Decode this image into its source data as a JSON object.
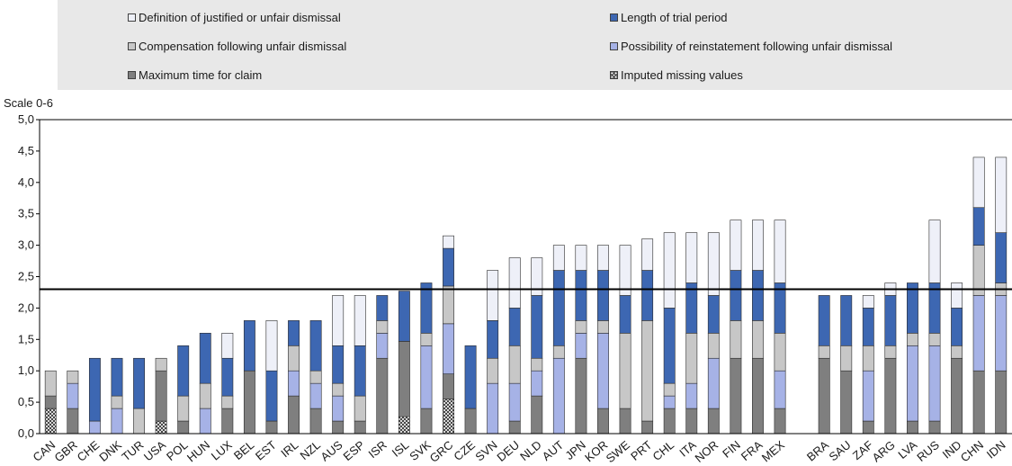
{
  "chart_data": {
    "type": "bar",
    "stacked": true,
    "ylabel": "Scale 0-6",
    "ylim": [
      0,
      5
    ],
    "yticks": [
      "0,0",
      "0,5",
      "1,0",
      "1,5",
      "2,0",
      "2,5",
      "3,0",
      "3,5",
      "4,0",
      "4,5",
      "5,0"
    ],
    "reference_line": 2.3,
    "grid": false,
    "legend_position": "top",
    "categories": [
      "CAN",
      "GBR",
      "CHE",
      "DNK",
      "TUR",
      "USA",
      "POL",
      "HUN",
      "LUX",
      "BEL",
      "EST",
      "IRL",
      "NZL",
      "AUS",
      "ESP",
      "ISR",
      "ISL",
      "SVK",
      "GRC",
      "CZE",
      "SVN",
      "DEU",
      "NLD",
      "AUT",
      "JPN",
      "KOR",
      "SWE",
      "PRT",
      "CHL",
      "ITA",
      "NOR",
      "FIN",
      "FRA",
      "MEX",
      "",
      "BRA",
      "SAU",
      "ZAF",
      "ARG",
      "LVA",
      "RUS",
      "IND",
      "CHN",
      "IDN"
    ],
    "series": [
      {
        "name": "Imputed missing values",
        "color": "#ffffff",
        "pattern": "cross",
        "values": [
          0.4,
          0,
          0,
          0,
          0,
          0.2,
          0,
          0,
          0,
          0,
          0,
          0,
          0,
          0,
          0,
          0,
          0.27,
          0,
          0.55,
          0,
          0,
          0,
          0,
          0,
          0,
          0,
          0,
          0,
          0,
          0,
          0,
          0,
          0,
          0,
          0,
          0,
          0,
          0,
          0,
          0,
          0,
          0,
          0,
          0
        ]
      },
      {
        "name": "Maximum time for claim",
        "color": "#7f7f7f",
        "values": [
          0.2,
          0.4,
          0,
          0,
          0,
          0.8,
          0.2,
          0,
          0.4,
          1.0,
          0.2,
          0.6,
          0.4,
          0.2,
          0.2,
          1.2,
          1.2,
          0.4,
          0.4,
          0.4,
          0,
          0.2,
          0.6,
          0,
          1.2,
          0.4,
          0.4,
          0.2,
          0.4,
          0.4,
          0.4,
          1.2,
          1.2,
          0.4,
          0,
          1.2,
          1.0,
          0.2,
          1.2,
          0.2,
          0.2,
          1.2,
          1.0,
          1.0
        ]
      },
      {
        "name": "Possibility of reinstatement following unfair dismissal",
        "color": "#a6b2e6",
        "values": [
          0,
          0.4,
          0.2,
          0.4,
          0,
          0,
          0,
          0.4,
          0,
          0,
          0,
          0.4,
          0.4,
          0.4,
          0,
          0.4,
          0,
          1.0,
          0.8,
          0,
          0.8,
          0.6,
          0.4,
          1.2,
          0.4,
          1.2,
          0,
          0,
          0.2,
          0.4,
          0.8,
          0,
          0,
          0.6,
          0,
          0,
          0,
          0.8,
          0,
          1.2,
          1.2,
          0,
          1.2,
          1.2
        ]
      },
      {
        "name": "Compensation following unfair dismissal",
        "color": "#c7c7c7",
        "values": [
          0.4,
          0.2,
          0,
          0.2,
          0.4,
          0.2,
          0.4,
          0.4,
          0.2,
          0,
          0,
          0.4,
          0.2,
          0.2,
          0.4,
          0.2,
          0,
          0.2,
          0.6,
          0,
          0.4,
          0.6,
          0.2,
          0.2,
          0.2,
          0.2,
          1.2,
          1.6,
          0.2,
          0.8,
          0.4,
          0.6,
          0.6,
          0.6,
          0,
          0.2,
          0.4,
          0.4,
          0.2,
          0.2,
          0.2,
          0.2,
          0.8,
          0.2
        ]
      },
      {
        "name": "Length of trial period",
        "color": "#3d67b2",
        "values": [
          0,
          0,
          1.0,
          0.6,
          0.8,
          0,
          0.8,
          0.8,
          0.6,
          0.8,
          0.8,
          0.4,
          0.8,
          0.6,
          0.8,
          0.4,
          0.8,
          0.8,
          0.6,
          1.0,
          0.6,
          0.6,
          1.0,
          1.2,
          0.8,
          0.8,
          0.6,
          0.8,
          1.2,
          0.8,
          0.6,
          0.8,
          0.8,
          0.8,
          0,
          0.8,
          0.8,
          0.6,
          0.8,
          0.8,
          0.8,
          0.6,
          0.6,
          0.8
        ]
      },
      {
        "name": "Definition of justified or unfair dismissal",
        "color": "#eef0f8",
        "values": [
          0,
          0,
          0,
          0,
          0,
          0,
          0,
          0,
          0.4,
          0,
          0.8,
          0,
          0,
          0.8,
          0.8,
          0,
          0,
          0,
          0.2,
          0,
          0.8,
          0.8,
          0.6,
          0.4,
          0.4,
          0.4,
          0.8,
          0.5,
          1.2,
          0.8,
          1.0,
          0.8,
          0.8,
          1.0,
          0,
          0,
          0,
          0.2,
          0.2,
          0,
          1.0,
          0.4,
          0.8,
          1.2
        ]
      }
    ],
    "legend": [
      {
        "label": "Definition of justified or unfair dismissal",
        "color": "#eef0f8"
      },
      {
        "label": "Length of trial period",
        "color": "#3d67b2"
      },
      {
        "label": "Compensation following unfair dismissal",
        "color": "#c7c7c7"
      },
      {
        "label": "Possibility of reinstatement following unfair dismissal",
        "color": "#a6b2e6"
      },
      {
        "label": "Maximum time for claim",
        "color": "#7f7f7f"
      },
      {
        "label": "Imputed missing values",
        "color": "#ffffff"
      }
    ]
  }
}
